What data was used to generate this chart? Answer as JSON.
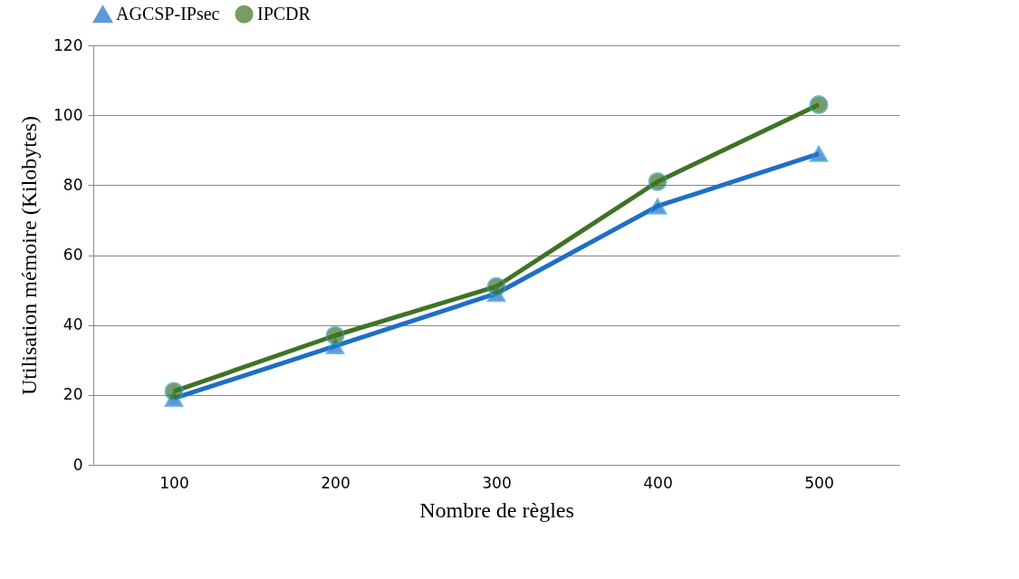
{
  "chart_data": {
    "type": "line",
    "xlabel": "Nombre de règles",
    "ylabel": "Utilisation mémoire (Kilobytes)",
    "categories": [
      "100",
      "200",
      "300",
      "400",
      "500"
    ],
    "series": [
      {
        "name": "AGCSP-IPsec",
        "color": "#1f6fc5",
        "marker": "triangle",
        "values": [
          19,
          34,
          49,
          74,
          89
        ]
      },
      {
        "name": "IPCDR",
        "color": "#3f7326",
        "marker": "circle",
        "values": [
          21,
          37,
          51,
          81,
          103
        ]
      }
    ],
    "ylim": [
      0,
      120
    ],
    "yticks": [
      0,
      20,
      40,
      60,
      80,
      100,
      120
    ],
    "grid": "y",
    "legend": "top",
    "line_style": "solid"
  }
}
